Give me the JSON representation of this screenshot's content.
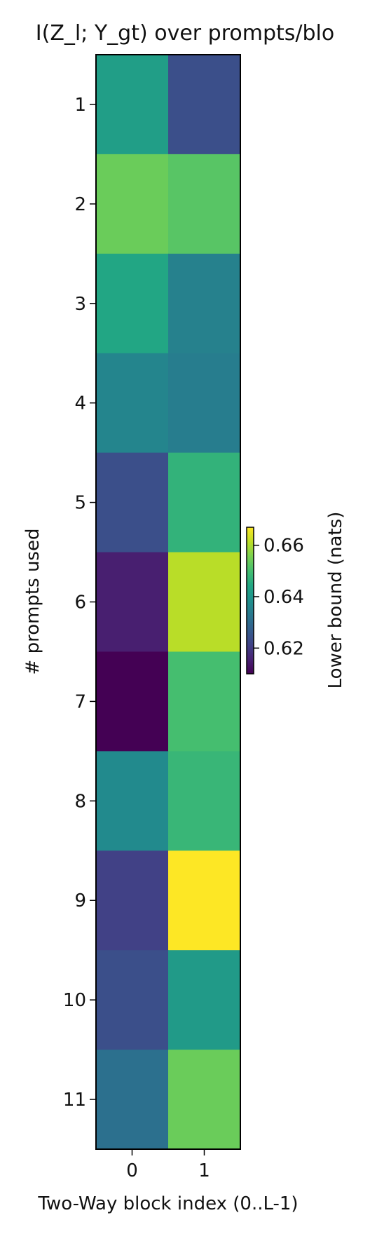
{
  "chart_data": {
    "type": "heatmap",
    "title": "I(Z_l; Y_gt) over prompts/blo",
    "xlabel": "Two-Way block index (0..L-1)",
    "ylabel": "# prompts used",
    "x_categories": [
      "0",
      "1"
    ],
    "y_categories": [
      "1",
      "2",
      "3",
      "4",
      "5",
      "6",
      "7",
      "8",
      "9",
      "10",
      "11"
    ],
    "values": [
      [
        0.642,
        0.624
      ],
      [
        0.654,
        0.652
      ],
      [
        0.644,
        0.635
      ],
      [
        0.636,
        0.634
      ],
      [
        0.624,
        0.647
      ],
      [
        0.615,
        0.661
      ],
      [
        0.61,
        0.65
      ],
      [
        0.637,
        0.648
      ],
      [
        0.621,
        0.667
      ],
      [
        0.624,
        0.641
      ],
      [
        0.631,
        0.654
      ]
    ],
    "colorbar": {
      "label": "Lower bound (nats)",
      "ticks": [
        0.62,
        0.64,
        0.66
      ],
      "tick_labels": [
        "0.62",
        "0.64",
        "0.66"
      ],
      "range": [
        0.61,
        0.667
      ],
      "colormap": "viridis"
    }
  }
}
